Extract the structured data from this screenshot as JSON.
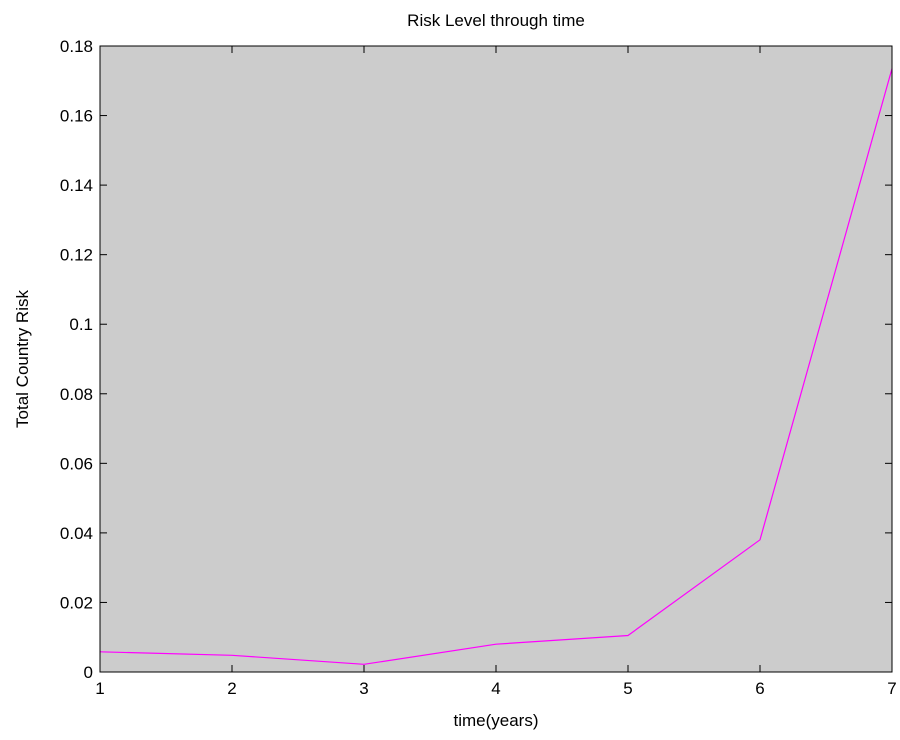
{
  "chart_data": {
    "type": "line",
    "title": "Risk Level through time",
    "xlabel": "time(years)",
    "ylabel": "Total Country Risk",
    "xlim": [
      1,
      7
    ],
    "ylim": [
      0,
      0.18
    ],
    "xticks": [
      "1",
      "2",
      "3",
      "4",
      "5",
      "6",
      "7"
    ],
    "yticks": [
      "0",
      "0.02",
      "0.04",
      "0.06",
      "0.08",
      "0.1",
      "0.12",
      "0.14",
      "0.16",
      "0.18"
    ],
    "grid": false,
    "legend": "none",
    "colors": {
      "plot_background": "#cccccc",
      "line": "#ff00ff",
      "frame": "#000000"
    },
    "series": [
      {
        "x": [
          1,
          2,
          3,
          4,
          5,
          6,
          7
        ],
        "y": [
          0.0058,
          0.0048,
          0.0022,
          0.008,
          0.0105,
          0.038,
          0.1735
        ]
      }
    ]
  }
}
